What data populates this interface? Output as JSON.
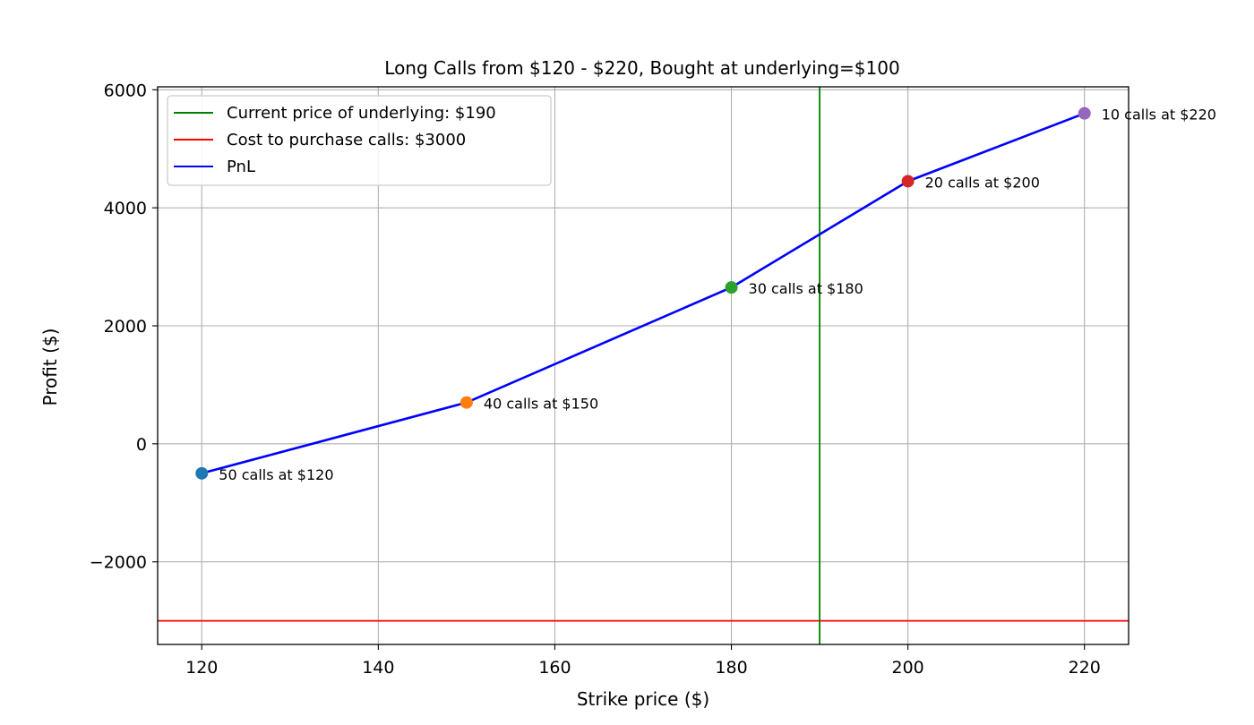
{
  "chart_data": {
    "type": "line",
    "title": "Long Calls from $120 - $220, Bought at underlying=$100",
    "xlabel": "Strike price ($)",
    "ylabel": "Profit ($)",
    "xlim": [
      115,
      225
    ],
    "ylim": [
      -3400,
      6050
    ],
    "x_ticks": [
      120,
      140,
      160,
      180,
      200,
      220
    ],
    "x_tick_labels": [
      "120",
      "140",
      "160",
      "180",
      "200",
      "220"
    ],
    "y_ticks": [
      -2000,
      0,
      2000,
      4000,
      6000
    ],
    "y_tick_labels": [
      "−2000",
      "0",
      "2000",
      "4000",
      "6000"
    ],
    "grid": true,
    "legend_position": "top-left",
    "series": [
      {
        "name": "PnL",
        "color": "#0000ff",
        "x": [
          120,
          150,
          180,
          200,
          220
        ],
        "y": [
          -500,
          700,
          2650,
          4450,
          5600
        ]
      }
    ],
    "points": [
      {
        "x": 120,
        "y": -500,
        "color": "#1f77b4",
        "label": "50 calls at $120"
      },
      {
        "x": 150,
        "y": 700,
        "color": "#ff7f0e",
        "label": "40 calls at $150"
      },
      {
        "x": 180,
        "y": 2650,
        "color": "#2ca02c",
        "label": "30 calls at $180"
      },
      {
        "x": 200,
        "y": 4450,
        "color": "#d62728",
        "label": "20 calls at $200"
      },
      {
        "x": 220,
        "y": 5600,
        "color": "#9467bd",
        "label": "10 calls at $220"
      }
    ],
    "vlines": [
      {
        "x": 190,
        "color": "#008000",
        "name": "Current price of underlying: $190"
      }
    ],
    "hlines": [
      {
        "y": -3000,
        "color": "#ff0000",
        "name": "Cost to purchase calls: $3000"
      }
    ],
    "legend": [
      {
        "label": "Current price of underlying: $190",
        "color": "#008000"
      },
      {
        "label": "Cost to purchase calls: $3000",
        "color": "#ff0000"
      },
      {
        "label": "PnL",
        "color": "#0000ff"
      }
    ]
  }
}
